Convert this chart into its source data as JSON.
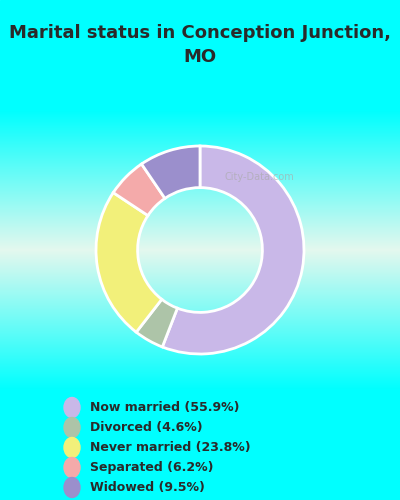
{
  "title": "Marital status in Conception Junction,\nMO",
  "wedge_labels": [
    "Now married",
    "Widowed",
    "Divorced",
    "Never married",
    "Separated"
  ],
  "wedge_values": [
    55.9,
    9.5,
    4.6,
    23.8,
    6.2
  ],
  "wedge_colors": [
    "#c9b8e8",
    "#9b8fcc",
    "#adc4a8",
    "#f2f07a",
    "#f4aaaa"
  ],
  "wedge_order": [
    0,
    1,
    2,
    3,
    4
  ],
  "legend_labels": [
    "Now married (55.9%)",
    "Divorced (4.6%)",
    "Never married (23.8%)",
    "Separated (6.2%)",
    "Widowed (9.5%)"
  ],
  "legend_colors": [
    "#c9b8e8",
    "#adc4a8",
    "#f2f07a",
    "#f4aaaa",
    "#9b8fcc"
  ],
  "bg_cyan": "#00ffff",
  "bg_top": "#d8f0e4",
  "bg_mid": "#e8f8f0",
  "figsize": [
    4.0,
    5.0
  ],
  "dpi": 100,
  "title_fontsize": 13,
  "legend_fontsize": 9
}
